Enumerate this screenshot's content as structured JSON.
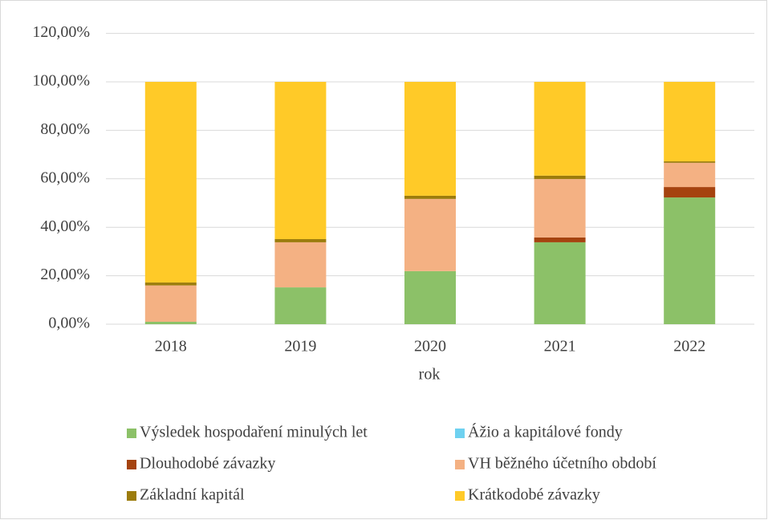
{
  "chart_data": {
    "type": "bar",
    "stacked": true,
    "categories": [
      "2018",
      "2019",
      "2020",
      "2021",
      "2022"
    ],
    "x_label": "rok",
    "ylim": [
      0,
      120
    ],
    "yticks": [
      {
        "value": 0,
        "label": "0,00%"
      },
      {
        "value": 20,
        "label": "20,00%"
      },
      {
        "value": 40,
        "label": "40,00%"
      },
      {
        "value": 60,
        "label": "60,00%"
      },
      {
        "value": 80,
        "label": "80,00%"
      },
      {
        "value": 100,
        "label": "100,00%"
      },
      {
        "value": 120,
        "label": "120,00%"
      }
    ],
    "grid": true,
    "legend": "bottom",
    "series": [
      {
        "name": "Výsledek hospodaření minulých let",
        "color": "#8cc168",
        "values": [
          1.0,
          15.2,
          21.9,
          33.8,
          52.3
        ]
      },
      {
        "name": "Ážio a kapitálové fondy",
        "color": "#6fd1f0",
        "values": [
          0,
          0,
          0,
          0,
          0
        ]
      },
      {
        "name": "Dlouhodobé závazky",
        "color": "#a5430f",
        "values": [
          0,
          0,
          0,
          2.0,
          4.3
        ]
      },
      {
        "name": "VH běžného účetního období",
        "color": "#f4b183",
        "values": [
          15.0,
          18.6,
          29.8,
          24.1,
          10.0
        ]
      },
      {
        "name": "Základní kapitál",
        "color": "#9c7c0c",
        "values": [
          1.2,
          1.3,
          1.3,
          1.4,
          0.6
        ]
      },
      {
        "name": "Krátkodobé závazky",
        "color": "#ffca28",
        "values": [
          82.8,
          64.9,
          47.0,
          38.7,
          32.8
        ]
      }
    ]
  }
}
